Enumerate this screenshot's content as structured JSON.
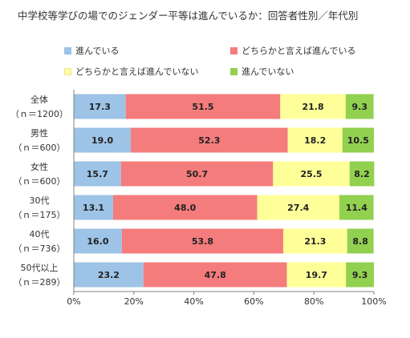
{
  "chart_data": {
    "type": "bar",
    "orientation": "horizontal",
    "stacked": true,
    "title": "中学校等学びの場でのジェンダー平等は進んでいるか：回答者性別／年代別",
    "categories": [
      {
        "label": "全体",
        "n": "（ｎ＝1200）"
      },
      {
        "label": "男性",
        "n": "（ｎ＝600）"
      },
      {
        "label": "女性",
        "n": "（ｎ＝600）"
      },
      {
        "label": "30代",
        "n": "（ｎ＝175）"
      },
      {
        "label": "40代",
        "n": "（ｎ＝736）"
      },
      {
        "label": "50代以上",
        "n": "（ｎ＝289）"
      }
    ],
    "series": [
      {
        "name": "進んでいる",
        "color": "#9dc3e6",
        "values": [
          17.3,
          19.0,
          15.7,
          13.1,
          16.0,
          23.2
        ]
      },
      {
        "name": "どちらかと言えば進んでいる",
        "color": "#f47c7c",
        "values": [
          51.5,
          52.3,
          50.7,
          48.0,
          53.8,
          47.8
        ]
      },
      {
        "name": "どちらかと言えば進んでいない",
        "color": "#ffff99",
        "values": [
          21.8,
          18.2,
          25.5,
          27.4,
          21.3,
          19.7
        ]
      },
      {
        "name": "進んでいない",
        "color": "#92d050",
        "values": [
          9.3,
          10.5,
          8.2,
          11.4,
          8.8,
          9.3
        ]
      }
    ],
    "xlim": [
      0,
      100
    ],
    "xticks": [
      "0%",
      "20%",
      "40%",
      "60%",
      "80%",
      "100%"
    ],
    "legend_position": "top",
    "grid": false
  }
}
